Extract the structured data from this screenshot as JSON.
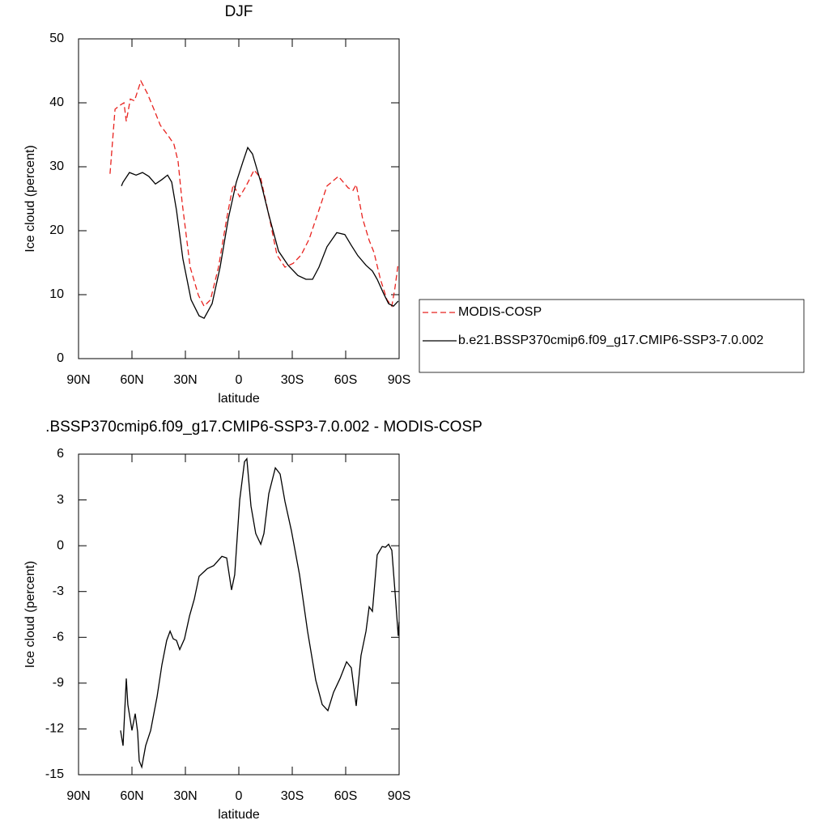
{
  "chart_data": [
    {
      "type": "line",
      "title": "DJF",
      "x_label": "latitude",
      "y_label": "Ice cloud (percent)",
      "xlim": [
        90,
        -90
      ],
      "xticks": [
        {
          "value": 90,
          "label": "90N"
        },
        {
          "value": 60,
          "label": "60N"
        },
        {
          "value": 30,
          "label": "30N"
        },
        0,
        {
          "value": -30,
          "label": "30S"
        },
        {
          "value": -60,
          "label": "60S"
        },
        {
          "value": -90,
          "label": "90S"
        }
      ],
      "ylim": [
        0,
        50
      ],
      "yticks": [
        0,
        10,
        20,
        30,
        40,
        50
      ],
      "legend": "outside-right",
      "series": [
        {
          "name": "MODIS-COSP",
          "color": "#e8231f",
          "line_style": "dashed",
          "x": [
            72.3,
            69.5,
            66.8,
            64.5,
            63.2,
            60.9,
            58.6,
            55,
            51.4,
            47.7,
            44.1,
            39.5,
            36.4,
            34.1,
            31.8,
            27.3,
            22.7,
            19.5,
            15.9,
            11.4,
            6.8,
            3.2,
            -0.45,
            -4.1,
            -8.6,
            -12.3,
            -16.8,
            -21.4,
            -25.9,
            -30.5,
            -35,
            -39.5,
            -44.1,
            -49.5,
            -55.9,
            -61.4,
            -64.1,
            -65.9,
            -69.5,
            -73.2,
            -75.9,
            -79.5,
            -83.2,
            -85.9,
            -87.7,
            -89.5
          ],
          "values": [
            28.9,
            39,
            39.6,
            40,
            37.1,
            40.6,
            40.3,
            43.4,
            41.5,
            39,
            36.5,
            34.8,
            33.5,
            30.8,
            24.4,
            14.3,
            9.9,
            8.2,
            9.2,
            14.3,
            21.9,
            27.2,
            25.3,
            27,
            29.5,
            28.2,
            22.5,
            16.2,
            14.3,
            14.9,
            16.2,
            18.7,
            22.5,
            27,
            28.5,
            26.7,
            26.3,
            27.2,
            21.9,
            18.5,
            16.6,
            12.4,
            9.2,
            8.2,
            11.1,
            14.9
          ]
        },
        {
          "name": "b.e21.BSSP370cmip6.f09_g17.CMIP6-SSP3-7.0.002",
          "color": "#000000",
          "line_style": "solid",
          "x": [
            65.9,
            65,
            61.4,
            57.7,
            54.1,
            50.5,
            46.8,
            43.2,
            40,
            37.7,
            35,
            31.4,
            26.8,
            22.3,
            19.5,
            15,
            10.5,
            5.9,
            1.4,
            -2.3,
            -5,
            -7.7,
            -12.3,
            -16.8,
            -22.3,
            -27.7,
            -33.2,
            -37.7,
            -41.4,
            -45,
            -49.5,
            -55,
            -59.5,
            -63.2,
            -66.8,
            -71.4,
            -75,
            -77.7,
            -81.4,
            -84.1,
            -86.8,
            -89.5
          ],
          "values": [
            27,
            27.6,
            29.1,
            28.7,
            29.1,
            28.5,
            27.3,
            28,
            28.7,
            27.6,
            23.2,
            15.6,
            9.2,
            6.7,
            6.3,
            8.6,
            14.3,
            21.9,
            27.6,
            30.8,
            33,
            32,
            27.6,
            22.5,
            16.8,
            14.6,
            13,
            12.4,
            12.4,
            14.3,
            17.5,
            19.7,
            19.4,
            17.7,
            16.1,
            14.6,
            13.7,
            12.4,
            10.1,
            8.6,
            8.2,
            9
          ]
        }
      ]
    },
    {
      "type": "line",
      "title": ".BSSP370cmip6.f09_g17.CMIP6-SSP3-7.0.002 - MODIS-COSP",
      "x_label": "latitude",
      "y_label": "Ice cloud (percent)",
      "xlim": [
        90,
        -90
      ],
      "xticks": [
        {
          "value": 90,
          "label": "90N"
        },
        {
          "value": 60,
          "label": "60N"
        },
        {
          "value": 30,
          "label": "30N"
        },
        0,
        {
          "value": -30,
          "label": "30S"
        },
        {
          "value": -60,
          "label": "60S"
        },
        {
          "value": -90,
          "label": "90S"
        }
      ],
      "ylim": [
        -15,
        6
      ],
      "yticks": [
        -15,
        -12,
        -9,
        -6,
        -3,
        0,
        3,
        6
      ],
      "color": "#000000",
      "x": [
        66.4,
        65,
        63.2,
        62.3,
        60,
        58.2,
        56.8,
        55.9,
        54.5,
        52.3,
        49.5,
        45.9,
        43.2,
        40.5,
        38.6,
        36.8,
        35,
        33.2,
        30.5,
        27.7,
        25,
        22.3,
        17.7,
        14.1,
        9.5,
        6.8,
        4.1,
        2.3,
        -0.5,
        -3.2,
        -4.5,
        -6.8,
        -9.5,
        -12.3,
        -14.1,
        -16.8,
        -20.5,
        -23.2,
        -25.9,
        -29.5,
        -34.1,
        -38.6,
        -43.2,
        -46.8,
        -50,
        -53.2,
        -56.8,
        -60.5,
        -63.2,
        -65.9,
        -68.6,
        -71.4,
        -73.2,
        -75,
        -77.7,
        -80.5,
        -82.3,
        -84.1,
        -85.9,
        -87.7,
        -89.5,
        -90
      ],
      "values": [
        -12.1,
        -13.1,
        -8.7,
        -10.4,
        -12.1,
        -11,
        -12.2,
        -14.1,
        -14.5,
        -13.1,
        -12.1,
        -9.9,
        -7.8,
        -6.2,
        -5.6,
        -6.1,
        -6.2,
        -6.8,
        -6.1,
        -4.6,
        -3.5,
        -2,
        -1.5,
        -1.3,
        -0.7,
        -0.8,
        -2.9,
        -1.9,
        3,
        5.5,
        5.7,
        2.6,
        0.8,
        0.1,
        0.8,
        3.4,
        5.1,
        4.7,
        2.9,
        1,
        -1.9,
        -5.6,
        -8.8,
        -10.4,
        -10.8,
        -9.6,
        -8.7,
        -7.6,
        -8,
        -10.5,
        -7.2,
        -5.6,
        -4,
        -4.3,
        -0.6,
        -0.05,
        -0.1,
        0.1,
        -0.3,
        -3,
        -5.9,
        -5
      ]
    }
  ]
}
